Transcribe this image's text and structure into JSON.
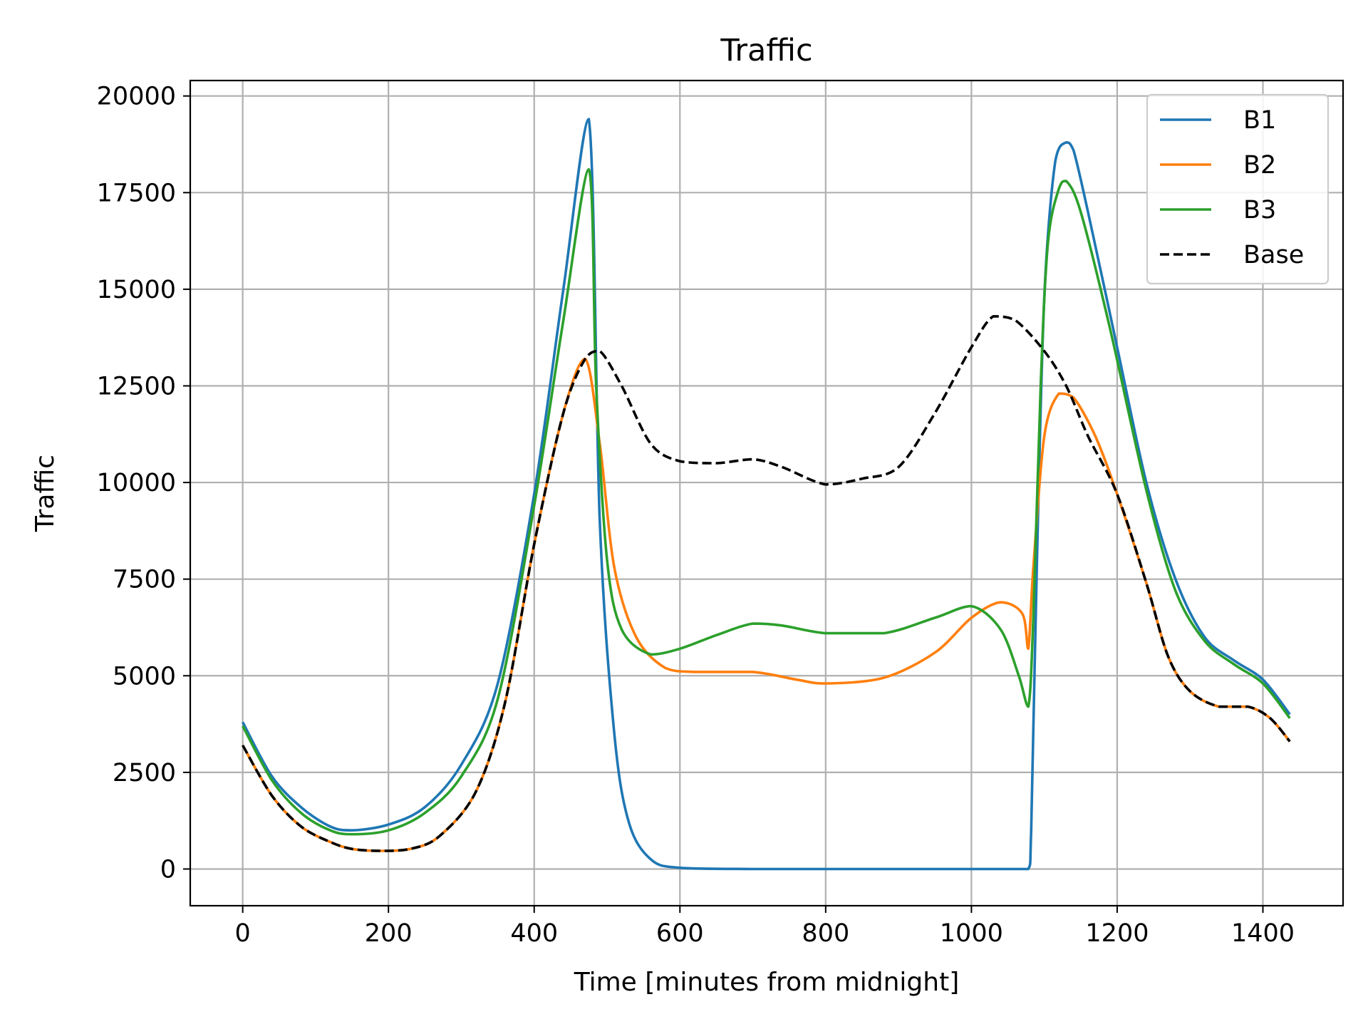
{
  "chart_data": {
    "type": "line",
    "title": "Traffic",
    "xlabel": "Time [minutes from midnight]",
    "ylabel": "Traffic",
    "xlim": [
      -72,
      1510
    ],
    "ylim": [
      -950,
      20400
    ],
    "xticks": [
      0,
      200,
      400,
      600,
      800,
      1000,
      1200,
      1400
    ],
    "yticks": [
      0,
      2500,
      5000,
      7500,
      10000,
      12500,
      15000,
      17500,
      20000
    ],
    "grid": true,
    "legend_position": "top-right",
    "series": [
      {
        "name": "B1",
        "color": "#1f77b4",
        "dash": "solid",
        "points": [
          [
            0,
            3800
          ],
          [
            40,
            2400
          ],
          [
            80,
            1600
          ],
          [
            120,
            1100
          ],
          [
            150,
            1000
          ],
          [
            200,
            1150
          ],
          [
            250,
            1600
          ],
          [
            300,
            2700
          ],
          [
            350,
            4800
          ],
          [
            400,
            9700
          ],
          [
            440,
            15000
          ],
          [
            475,
            19400
          ],
          [
            490,
            9000
          ],
          [
            510,
            3500
          ],
          [
            530,
            1200
          ],
          [
            560,
            250
          ],
          [
            600,
            30
          ],
          [
            700,
            0
          ],
          [
            800,
            0
          ],
          [
            900,
            0
          ],
          [
            1000,
            0
          ],
          [
            1078,
            0
          ],
          [
            1082,
            1000
          ],
          [
            1090,
            8000
          ],
          [
            1100,
            14800
          ],
          [
            1115,
            18300
          ],
          [
            1130,
            18800
          ],
          [
            1140,
            18600
          ],
          [
            1160,
            17000
          ],
          [
            1200,
            13500
          ],
          [
            1240,
            10000
          ],
          [
            1280,
            7500
          ],
          [
            1320,
            6000
          ],
          [
            1360,
            5400
          ],
          [
            1400,
            4900
          ],
          [
            1437,
            4000
          ]
        ]
      },
      {
        "name": "B2",
        "color": "#ff7f0e",
        "dash": "solid",
        "points": [
          [
            0,
            3200
          ],
          [
            40,
            1900
          ],
          [
            80,
            1100
          ],
          [
            120,
            700
          ],
          [
            150,
            520
          ],
          [
            190,
            470
          ],
          [
            230,
            520
          ],
          [
            270,
            850
          ],
          [
            320,
            2000
          ],
          [
            360,
            4300
          ],
          [
            400,
            8400
          ],
          [
            440,
            11800
          ],
          [
            470,
            13200
          ],
          [
            490,
            11000
          ],
          [
            510,
            7800
          ],
          [
            540,
            6000
          ],
          [
            580,
            5200
          ],
          [
            620,
            5100
          ],
          [
            700,
            5100
          ],
          [
            760,
            4900
          ],
          [
            800,
            4800
          ],
          [
            880,
            4950
          ],
          [
            950,
            5600
          ],
          [
            1000,
            6500
          ],
          [
            1040,
            6900
          ],
          [
            1070,
            6600
          ],
          [
            1078,
            5700
          ],
          [
            1085,
            7800
          ],
          [
            1100,
            11200
          ],
          [
            1120,
            12300
          ],
          [
            1140,
            12200
          ],
          [
            1170,
            11200
          ],
          [
            1200,
            9700
          ],
          [
            1240,
            7400
          ],
          [
            1270,
            5500
          ],
          [
            1300,
            4600
          ],
          [
            1340,
            4200
          ],
          [
            1380,
            4200
          ],
          [
            1410,
            3900
          ],
          [
            1437,
            3300
          ]
        ]
      },
      {
        "name": "B3",
        "color": "#2ca02c",
        "dash": "solid",
        "points": [
          [
            0,
            3700
          ],
          [
            40,
            2300
          ],
          [
            80,
            1450
          ],
          [
            120,
            1000
          ],
          [
            150,
            900
          ],
          [
            200,
            1000
          ],
          [
            250,
            1450
          ],
          [
            300,
            2400
          ],
          [
            350,
            4400
          ],
          [
            400,
            9400
          ],
          [
            440,
            14200
          ],
          [
            475,
            18100
          ],
          [
            485,
            12500
          ],
          [
            500,
            8000
          ],
          [
            520,
            6200
          ],
          [
            560,
            5550
          ],
          [
            600,
            5700
          ],
          [
            650,
            6050
          ],
          [
            700,
            6350
          ],
          [
            740,
            6300
          ],
          [
            800,
            6100
          ],
          [
            880,
            6100
          ],
          [
            950,
            6500
          ],
          [
            1000,
            6800
          ],
          [
            1040,
            6200
          ],
          [
            1065,
            5000
          ],
          [
            1078,
            4200
          ],
          [
            1085,
            6500
          ],
          [
            1095,
            12500
          ],
          [
            1105,
            16200
          ],
          [
            1120,
            17600
          ],
          [
            1130,
            17800
          ],
          [
            1150,
            17000
          ],
          [
            1190,
            14000
          ],
          [
            1240,
            9800
          ],
          [
            1280,
            7200
          ],
          [
            1320,
            5900
          ],
          [
            1360,
            5300
          ],
          [
            1400,
            4800
          ],
          [
            1437,
            3900
          ]
        ]
      },
      {
        "name": "Base",
        "color": "#000000",
        "dash": "dashed",
        "points": [
          [
            0,
            3200
          ],
          [
            40,
            1900
          ],
          [
            80,
            1100
          ],
          [
            120,
            700
          ],
          [
            150,
            520
          ],
          [
            190,
            470
          ],
          [
            230,
            520
          ],
          [
            270,
            850
          ],
          [
            320,
            2000
          ],
          [
            360,
            4300
          ],
          [
            400,
            8400
          ],
          [
            440,
            11800
          ],
          [
            470,
            13200
          ],
          [
            490,
            13400
          ],
          [
            520,
            12500
          ],
          [
            560,
            11000
          ],
          [
            600,
            10550
          ],
          [
            650,
            10500
          ],
          [
            700,
            10600
          ],
          [
            740,
            10400
          ],
          [
            800,
            9950
          ],
          [
            850,
            10100
          ],
          [
            900,
            10400
          ],
          [
            950,
            11800
          ],
          [
            1000,
            13500
          ],
          [
            1030,
            14300
          ],
          [
            1060,
            14200
          ],
          [
            1100,
            13400
          ],
          [
            1130,
            12500
          ],
          [
            1160,
            11200
          ],
          [
            1200,
            9700
          ],
          [
            1240,
            7400
          ],
          [
            1270,
            5500
          ],
          [
            1300,
            4600
          ],
          [
            1340,
            4200
          ],
          [
            1380,
            4200
          ],
          [
            1410,
            3900
          ],
          [
            1437,
            3300
          ]
        ]
      }
    ]
  }
}
